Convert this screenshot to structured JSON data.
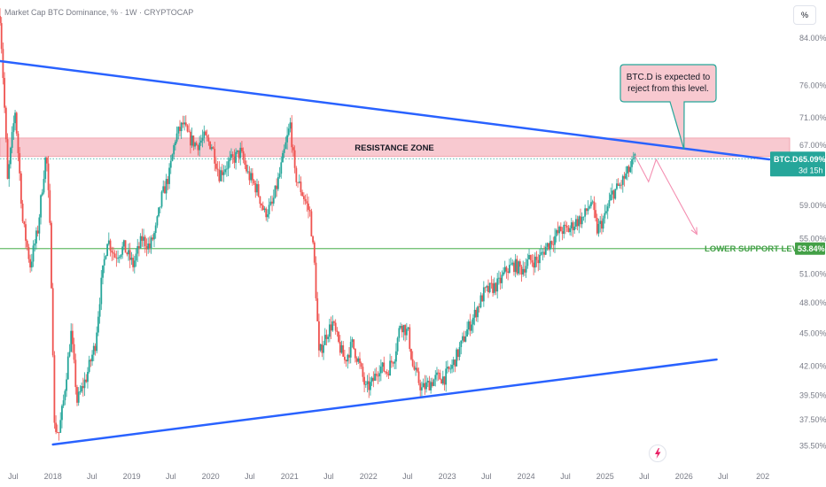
{
  "header": {
    "title": "Market Cap BTC Dominance, % · 1W · CRYPTOCAP",
    "unit_button": "%"
  },
  "colors": {
    "up": "#26a69a",
    "down": "#ef5350",
    "trendline": "#2962ff",
    "resistance_fill": "#f8c9d0",
    "support_line": "#66bb6a",
    "price_tag": "#26a69a",
    "support_tag": "#43a047",
    "callout_fill": "#f8c9d0",
    "callout_border": "#26a69a",
    "projection": "#f48fb1"
  },
  "chart_data": {
    "type": "candlestick",
    "y_scale": "log",
    "ylim": [
      35.2,
      90.0
    ],
    "xlim": [
      "2017-05-01",
      "2027-01-31"
    ],
    "y_ticks": [
      35.5,
      37.5,
      39.5,
      42.0,
      45.0,
      48.0,
      51.0,
      55.0,
      59.0,
      67.0,
      71.0,
      76.0,
      84.0
    ],
    "y_tick_labels": [
      "35.50%",
      "37.50%",
      "39.50%",
      "42.00%",
      "45.00%",
      "48.00%",
      "51.00%",
      "55.00%",
      "59.00%",
      "67.00%",
      "71.00%",
      "76.00%",
      "84.00%"
    ],
    "x_ticks": [
      "2017-07-01",
      "2018-01-01",
      "2018-07-01",
      "2019-01-01",
      "2019-07-01",
      "2020-01-01",
      "2020-07-01",
      "2021-01-01",
      "2021-07-01",
      "2022-01-01",
      "2022-07-01",
      "2023-01-01",
      "2023-07-01",
      "2024-01-01",
      "2024-07-01",
      "2025-01-01",
      "2025-07-01",
      "2026-01-01",
      "2026-07-01",
      "2027-01-01"
    ],
    "x_tick_labels": [
      "Jul",
      "2018",
      "Jul",
      "2019",
      "Jul",
      "2020",
      "Jul",
      "2021",
      "Jul",
      "2022",
      "Jul",
      "2023",
      "Jul",
      "2024",
      "Jul",
      "2025",
      "Jul",
      "2026",
      "Jul",
      "202"
    ],
    "path": [
      [
        "2017-05-01",
        88.0
      ],
      [
        "2017-06-05",
        62.0
      ],
      [
        "2017-07-10",
        72.0
      ],
      [
        "2017-08-14",
        57.0
      ],
      [
        "2017-09-18",
        52.0
      ],
      [
        "2017-10-23",
        56.0
      ],
      [
        "2017-12-01",
        66.0
      ],
      [
        "2017-12-20",
        55.0
      ],
      [
        "2018-01-08",
        37.0
      ],
      [
        "2018-01-29",
        36.5
      ],
      [
        "2018-02-19",
        39.0
      ],
      [
        "2018-03-26",
        45.0
      ],
      [
        "2018-04-23",
        39.0
      ],
      [
        "2018-06-04",
        41.0
      ],
      [
        "2018-07-16",
        44.0
      ],
      [
        "2018-08-13",
        50.0
      ],
      [
        "2018-09-10",
        55.0
      ],
      [
        "2018-10-15",
        53.0
      ],
      [
        "2018-11-26",
        54.0
      ],
      [
        "2019-01-07",
        52.0
      ],
      [
        "2019-02-18",
        55.0
      ],
      [
        "2019-03-25",
        54.0
      ],
      [
        "2019-04-22",
        56.0
      ],
      [
        "2019-05-20",
        60.0
      ],
      [
        "2019-06-24",
        63.0
      ],
      [
        "2019-07-22",
        68.0
      ],
      [
        "2019-08-26",
        70.0
      ],
      [
        "2019-09-23",
        68.0
      ],
      [
        "2019-10-28",
        67.0
      ],
      [
        "2019-12-02",
        68.0
      ],
      [
        "2020-01-06",
        67.0
      ],
      [
        "2020-02-10",
        63.0
      ],
      [
        "2020-03-09",
        64.0
      ],
      [
        "2020-04-13",
        65.0
      ],
      [
        "2020-05-18",
        66.0
      ],
      [
        "2020-06-22",
        63.0
      ],
      [
        "2020-08-03",
        61.0
      ],
      [
        "2020-09-07",
        58.0
      ],
      [
        "2020-10-12",
        59.0
      ],
      [
        "2020-11-16",
        63.0
      ],
      [
        "2020-12-21",
        68.0
      ],
      [
        "2021-01-04",
        70.0
      ],
      [
        "2021-01-25",
        63.0
      ],
      [
        "2021-02-22",
        61.0
      ],
      [
        "2021-04-05",
        58.0
      ],
      [
        "2021-04-26",
        52.0
      ],
      [
        "2021-05-17",
        43.0
      ],
      [
        "2021-06-21",
        45.0
      ],
      [
        "2021-07-19",
        46.0
      ],
      [
        "2021-08-16",
        44.0
      ],
      [
        "2021-09-13",
        42.5
      ],
      [
        "2021-10-18",
        44.0
      ],
      [
        "2021-11-15",
        42.5
      ],
      [
        "2021-12-20",
        40.0
      ],
      [
        "2022-01-17",
        40.5
      ],
      [
        "2022-02-21",
        42.0
      ],
      [
        "2022-03-28",
        41.5
      ],
      [
        "2022-05-02",
        43.0
      ],
      [
        "2022-05-30",
        46.0
      ],
      [
        "2022-07-04",
        45.0
      ],
      [
        "2022-07-25",
        42.0
      ],
      [
        "2022-09-05",
        40.0
      ],
      [
        "2022-10-10",
        40.5
      ],
      [
        "2022-11-14",
        41.0
      ],
      [
        "2022-12-19",
        41.0
      ],
      [
        "2023-01-23",
        42.0
      ],
      [
        "2023-02-27",
        43.5
      ],
      [
        "2023-03-27",
        45.0
      ],
      [
        "2023-05-01",
        46.5
      ],
      [
        "2023-06-19",
        49.0
      ],
      [
        "2023-07-24",
        49.5
      ],
      [
        "2023-08-28",
        50.0
      ],
      [
        "2023-10-02",
        51.5
      ],
      [
        "2023-11-06",
        52.0
      ],
      [
        "2023-12-11",
        51.5
      ],
      [
        "2024-01-15",
        52.5
      ],
      [
        "2024-02-26",
        52.5
      ],
      [
        "2024-04-01",
        54.0
      ],
      [
        "2024-05-06",
        55.0
      ],
      [
        "2024-06-10",
        56.0
      ],
      [
        "2024-07-15",
        56.0
      ],
      [
        "2024-08-19",
        57.0
      ],
      [
        "2024-09-23",
        57.5
      ],
      [
        "2024-10-28",
        59.5
      ],
      [
        "2024-11-25",
        56.0
      ],
      [
        "2024-12-30",
        57.5
      ],
      [
        "2025-02-03",
        60.5
      ],
      [
        "2025-03-10",
        61.5
      ],
      [
        "2025-04-21",
        63.5
      ],
      [
        "2025-05-19",
        65.0
      ]
    ],
    "trendlines": [
      {
        "from": [
          "2017-05-01",
          80.0
        ],
        "to": [
          "2027-01-31",
          65.0
        ]
      },
      {
        "from": [
          "2018-01-01",
          35.6
        ],
        "to": [
          "2026-06-01",
          42.6
        ]
      }
    ],
    "resistance_zone": {
      "label": "RESISTANCE ZONE",
      "low": 65.4,
      "high": 68.0
    },
    "support_level": {
      "label": "LOWER SUPPORT LEVEL",
      "value": 53.84,
      "tag": "53.84%"
    },
    "current_price": {
      "value": 65.09,
      "symbol": "BTC.D",
      "tag": "65.09%",
      "countdown": "3d 15h"
    },
    "projection": [
      [
        "2025-05-19",
        65.5
      ],
      [
        "2025-07-21",
        62.0
      ],
      [
        "2025-08-25",
        65.0
      ],
      [
        "2026-03-02",
        55.5
      ]
    ],
    "callout": {
      "lines": [
        "BTC.D is expected to",
        "reject from this level."
      ],
      "points_to": [
        "2026-01-01",
        66.4
      ]
    }
  }
}
